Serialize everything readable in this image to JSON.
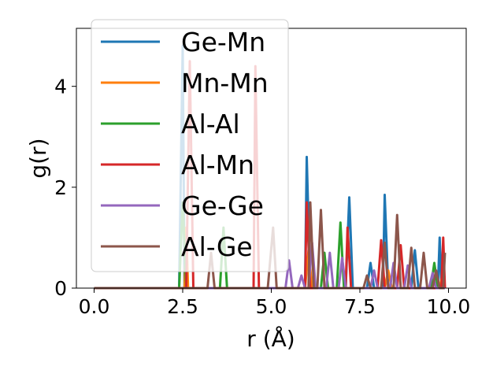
{
  "chart_data": {
    "type": "line",
    "title": "",
    "xlabel": "r (Å)",
    "ylabel": "g(r)",
    "xlim": [
      -0.5,
      10.5
    ],
    "ylim": [
      0,
      5.15
    ],
    "xticks": [
      0.0,
      2.5,
      5.0,
      7.5,
      10.0
    ],
    "xtick_labels": [
      "0.0",
      "2.5",
      "5.0",
      "7.5",
      "10.0"
    ],
    "yticks": [
      0,
      2,
      4
    ],
    "ytick_labels": [
      "0",
      "2",
      "4"
    ],
    "grid": false,
    "legend_position": "upper-left",
    "series": [
      {
        "name": "Ge-Mn",
        "color": "#1f77b4",
        "points": [
          [
            0,
            0
          ],
          [
            2.4,
            0
          ],
          [
            2.5,
            4.8
          ],
          [
            2.55,
            0
          ],
          [
            5.95,
            0
          ],
          [
            6.0,
            2.6
          ],
          [
            6.1,
            0
          ],
          [
            7.1,
            0
          ],
          [
            7.2,
            1.8
          ],
          [
            7.3,
            0
          ],
          [
            7.7,
            0
          ],
          [
            7.8,
            0.5
          ],
          [
            7.9,
            0
          ],
          [
            8.15,
            0
          ],
          [
            8.2,
            1.85
          ],
          [
            8.3,
            0
          ],
          [
            8.95,
            0
          ],
          [
            9.05,
            0.75
          ],
          [
            9.15,
            0
          ],
          [
            9.7,
            0
          ],
          [
            9.75,
            1.0
          ],
          [
            9.8,
            0
          ],
          [
            9.9,
            0
          ]
        ]
      },
      {
        "name": "Mn-Mn",
        "color": "#ff7f0e",
        "points": [
          [
            0,
            0
          ],
          [
            2.55,
            0
          ],
          [
            2.6,
            1.2
          ],
          [
            2.65,
            0
          ],
          [
            5.95,
            0
          ],
          [
            6.05,
            0.75
          ],
          [
            6.15,
            0
          ],
          [
            8.2,
            0
          ],
          [
            8.3,
            0.35
          ],
          [
            8.4,
            0
          ],
          [
            9.75,
            0
          ],
          [
            9.85,
            0.35
          ],
          [
            9.9,
            0
          ]
        ]
      },
      {
        "name": "Al-Al",
        "color": "#2ca02c",
        "points": [
          [
            0,
            0
          ],
          [
            2.4,
            0
          ],
          [
            2.5,
            1.7
          ],
          [
            2.6,
            0
          ],
          [
            3.55,
            0
          ],
          [
            3.65,
            1.2
          ],
          [
            3.75,
            0
          ],
          [
            6.4,
            0
          ],
          [
            6.5,
            0.7
          ],
          [
            6.6,
            0
          ],
          [
            6.85,
            0
          ],
          [
            6.95,
            1.3
          ],
          [
            7.05,
            0
          ],
          [
            9.5,
            0
          ],
          [
            9.6,
            0.5
          ],
          [
            9.7,
            0
          ],
          [
            9.9,
            0
          ]
        ]
      },
      {
        "name": "Al-Mn",
        "color": "#d62728",
        "points": [
          [
            0,
            0
          ],
          [
            2.6,
            0
          ],
          [
            2.7,
            4.5
          ],
          [
            2.8,
            0
          ],
          [
            4.5,
            0
          ],
          [
            4.55,
            4.4
          ],
          [
            4.65,
            0
          ],
          [
            5.95,
            0
          ],
          [
            6.0,
            1.7
          ],
          [
            6.1,
            0
          ],
          [
            7.1,
            0
          ],
          [
            7.15,
            1.2
          ],
          [
            7.25,
            0
          ],
          [
            8.0,
            0
          ],
          [
            8.1,
            0.95
          ],
          [
            8.2,
            0
          ],
          [
            8.55,
            0
          ],
          [
            8.65,
            0.85
          ],
          [
            8.75,
            0
          ],
          [
            9.8,
            0
          ],
          [
            9.85,
            1.0
          ],
          [
            9.9,
            0
          ]
        ]
      },
      {
        "name": "Ge-Ge",
        "color": "#9467bd",
        "points": [
          [
            0,
            0
          ],
          [
            5.4,
            0
          ],
          [
            5.5,
            0.55
          ],
          [
            5.6,
            0
          ],
          [
            5.75,
            0
          ],
          [
            5.85,
            0.25
          ],
          [
            5.95,
            0
          ],
          [
            6.05,
            0
          ],
          [
            6.15,
            0.9
          ],
          [
            6.25,
            0
          ],
          [
            6.55,
            0
          ],
          [
            6.65,
            0.7
          ],
          [
            6.75,
            0
          ],
          [
            6.9,
            0
          ],
          [
            7.0,
            0.6
          ],
          [
            7.1,
            0
          ],
          [
            7.8,
            0
          ],
          [
            7.9,
            0.35
          ],
          [
            8.0,
            0
          ],
          [
            8.35,
            0
          ],
          [
            8.45,
            0.5
          ],
          [
            8.55,
            0
          ],
          [
            8.75,
            0
          ],
          [
            8.85,
            0.45
          ],
          [
            8.95,
            0
          ],
          [
            9.45,
            0
          ],
          [
            9.55,
            0.3
          ],
          [
            9.65,
            0
          ],
          [
            9.9,
            0
          ]
        ]
      },
      {
        "name": "Al-Ge",
        "color": "#8c564b",
        "points": [
          [
            0,
            0
          ],
          [
            3.2,
            0
          ],
          [
            3.3,
            0.7
          ],
          [
            3.4,
            0
          ],
          [
            4.9,
            0
          ],
          [
            5.05,
            1.2
          ],
          [
            5.15,
            0
          ],
          [
            6.05,
            0
          ],
          [
            6.1,
            1.7
          ],
          [
            6.2,
            0
          ],
          [
            6.3,
            0
          ],
          [
            6.4,
            1.55
          ],
          [
            6.5,
            0
          ],
          [
            7.6,
            0
          ],
          [
            7.7,
            0.25
          ],
          [
            7.8,
            0
          ],
          [
            8.1,
            0
          ],
          [
            8.2,
            0.9
          ],
          [
            8.3,
            0
          ],
          [
            8.45,
            0
          ],
          [
            8.55,
            1.45
          ],
          [
            8.65,
            0
          ],
          [
            8.85,
            0
          ],
          [
            8.95,
            0.8
          ],
          [
            9.05,
            0
          ],
          [
            9.2,
            0
          ],
          [
            9.3,
            0.7
          ],
          [
            9.4,
            0
          ],
          [
            9.55,
            0
          ],
          [
            9.65,
            0.35
          ],
          [
            9.75,
            0
          ],
          [
            9.85,
            0
          ],
          [
            9.9,
            0.7
          ]
        ]
      }
    ]
  }
}
